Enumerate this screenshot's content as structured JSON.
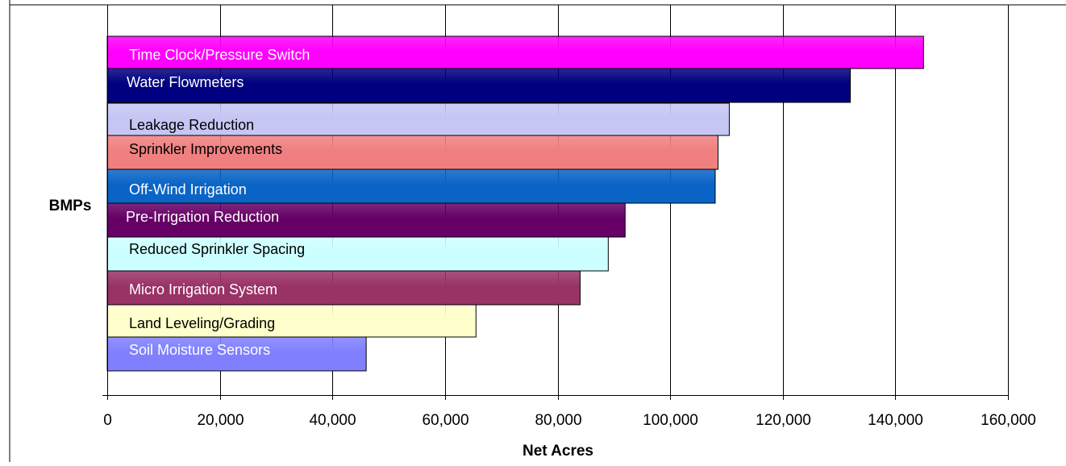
{
  "chart_data": {
    "type": "bar",
    "orientation": "horizontal",
    "ylabel": "BMPs",
    "xlabel": "Net Acres",
    "xlim": [
      0,
      160000
    ],
    "xticks": [
      0,
      20000,
      40000,
      60000,
      80000,
      100000,
      120000,
      140000,
      160000
    ],
    "xtick_labels": [
      "0",
      "20,000",
      "40,000",
      "60,000",
      "80,000",
      "100,000",
      "120,000",
      "140,000",
      "160,000"
    ],
    "grid": "vertical",
    "legend": "none",
    "categories": [
      "Time Clock/Pressure Switch",
      "Water Flowmeters",
      "Leakage Reduction",
      "Sprinkler Improvements",
      "Off-Wind Irrigation",
      "Pre-Irrigation Reduction",
      "Reduced Sprinkler Spacing",
      "Micro Irrigation System",
      "Land Leveling/Grading",
      "Soil Moisture Sensors"
    ],
    "values": [
      145000,
      132000,
      110500,
      108500,
      108000,
      92000,
      89000,
      84000,
      65500,
      46000
    ],
    "colors": [
      "#FF00FF",
      "#000080",
      "#C6C6F4",
      "#F08080",
      "#0A64C6",
      "#660066",
      "#CCFFFF",
      "#993366",
      "#FFFFCC",
      "#8080FF"
    ],
    "label_colors": [
      "#FFFFFF",
      "#FFFFFF",
      "#000000",
      "#000000",
      "#FFFFFF",
      "#FFFFFF",
      "#000000",
      "#FFFFFF",
      "#000000",
      "#FFFFFF"
    ]
  }
}
